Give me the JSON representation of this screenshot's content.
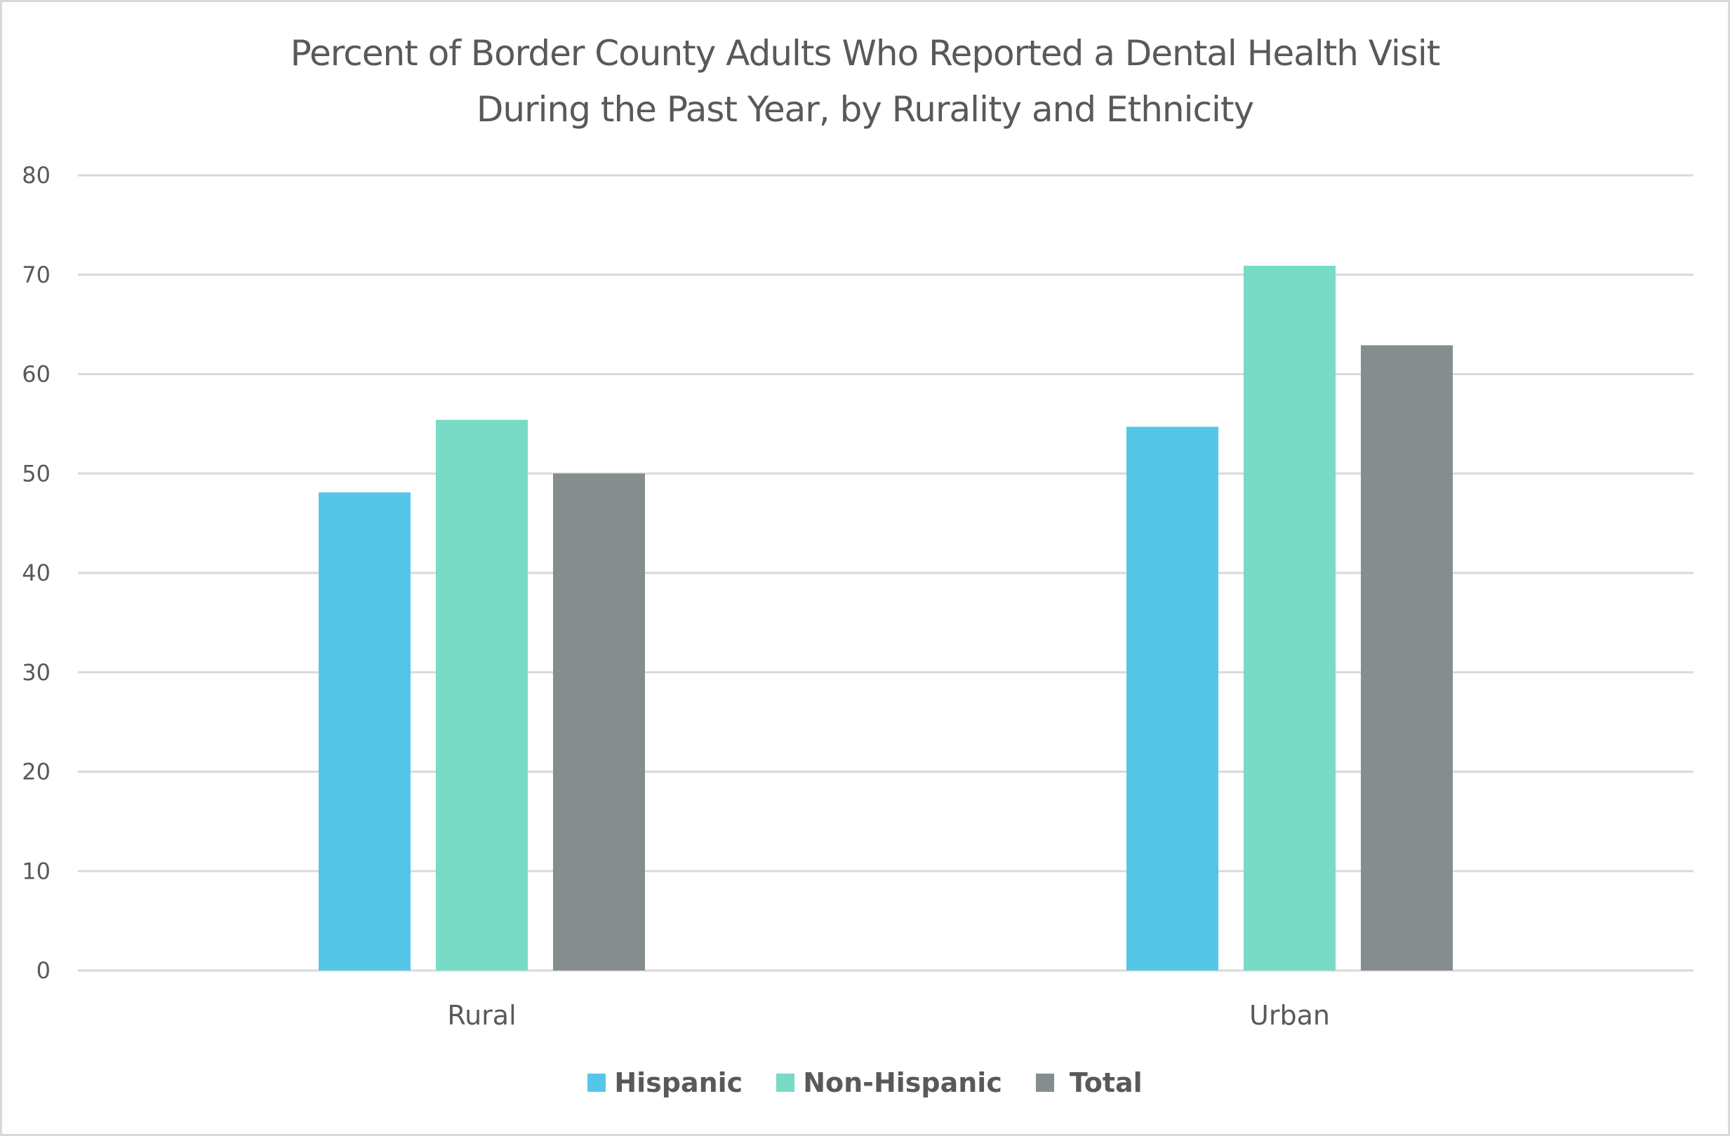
{
  "chart_data": {
    "type": "bar",
    "title": "Percent of Border County Adults Who Reported a Dental Health Visit During the Past Year, by Rurality and Ethnicity",
    "title_lines": [
      "Percent of Border County Adults Who Reported a Dental Health Visit",
      "During the Past Year, by Rurality and Ethnicity"
    ],
    "xlabel": "",
    "ylabel": "",
    "categories": [
      "Rural",
      "Urban"
    ],
    "series": [
      {
        "name": "Hispanic",
        "color": "#54C7E8",
        "values": [
          48.1,
          54.7
        ]
      },
      {
        "name": "Non-Hispanic",
        "color": "#77DBC6",
        "values": [
          55.4,
          70.9
        ]
      },
      {
        "name": "Total",
        "color": "#868D8E",
        "values": [
          50.0,
          62.9
        ]
      }
    ],
    "ylim": [
      0,
      80
    ],
    "yticks": [
      0,
      10,
      20,
      30,
      40,
      50,
      60,
      70,
      80
    ],
    "grid": true,
    "gridline_color": "#D9D9D9",
    "legend_position": "bottom"
  }
}
